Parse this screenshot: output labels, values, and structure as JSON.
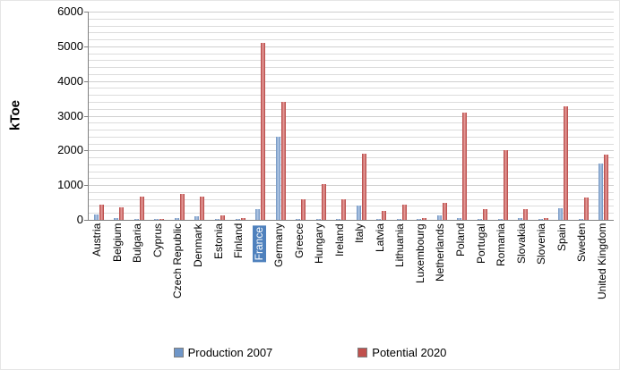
{
  "chart_data": {
    "type": "bar",
    "title": "",
    "xlabel": "",
    "ylabel": "kToe",
    "ylim": [
      0,
      6000
    ],
    "yticks": [
      0,
      1000,
      2000,
      3000,
      4000,
      5000,
      6000
    ],
    "minor_gridline_step": 200,
    "grid": true,
    "legend_position": "bottom",
    "highlighted_category": "France",
    "categories": [
      "Austria",
      "Belgium",
      "Bulgaria",
      "Cyprus",
      "Czech Republic",
      "Denmark",
      "Estonia",
      "Finland",
      "France",
      "Germany",
      "Greece",
      "Hungary",
      "Ireland",
      "Italy",
      "Latvia",
      "Lithuania",
      "Luxembourg",
      "Netherlands",
      "Poland",
      "Portugal",
      "Romania",
      "Slovakia",
      "Slovenia",
      "Spain",
      "Sweden",
      "United Kingdom"
    ],
    "series": [
      {
        "name": "Production 2007",
        "color": "#6f96c8",
        "values": [
          150,
          60,
          10,
          5,
          60,
          110,
          5,
          15,
          300,
          2400,
          20,
          30,
          30,
          410,
          5,
          10,
          10,
          120,
          40,
          20,
          5,
          60,
          15,
          330,
          25,
          1620
        ]
      },
      {
        "name": "Potential 2020",
        "color": "#c0504d",
        "values": [
          450,
          350,
          660,
          30,
          740,
          660,
          120,
          40,
          5100,
          3400,
          600,
          1030,
          580,
          1900,
          250,
          430,
          50,
          480,
          3100,
          300,
          2020,
          310,
          40,
          3270,
          650,
          1870
        ]
      }
    ]
  }
}
